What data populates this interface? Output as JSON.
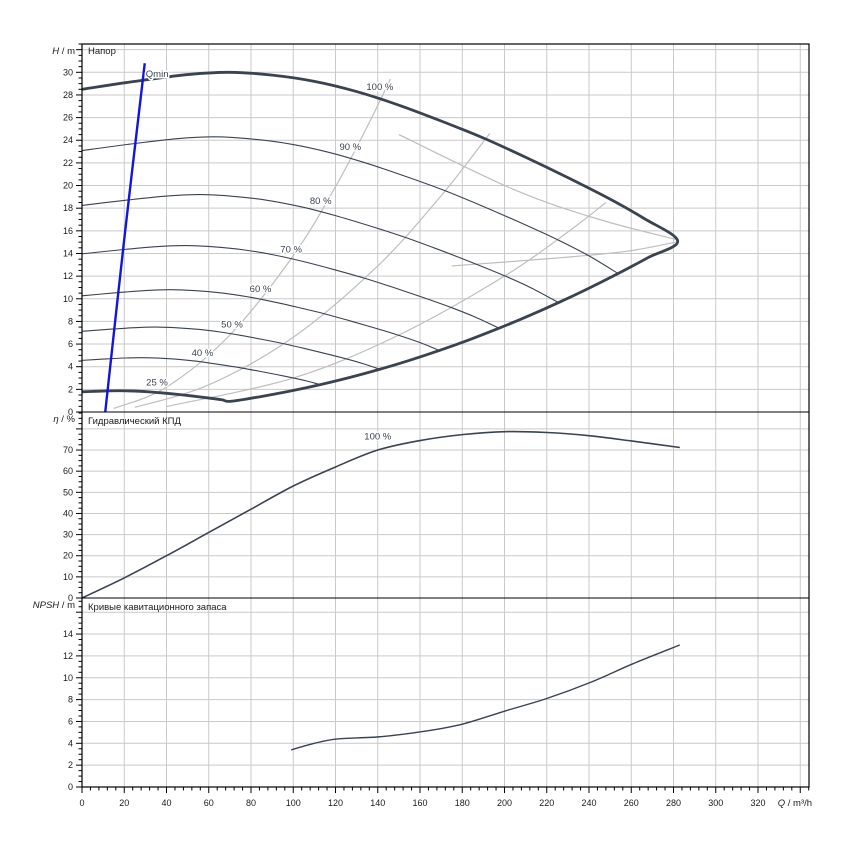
{
  "colors": {
    "curve": "#3A4350",
    "grid": "#C9C9C9",
    "iso": "#BEBEBE",
    "qmin": "#1414E0",
    "frame": "#000000",
    "text": "#1A1A1A",
    "tick": "#000000"
  },
  "x_axis": {
    "label_main": "Q",
    "label_unit": " / m³/h",
    "lim": [
      0,
      344
    ],
    "label_step": 20,
    "label_max": 320,
    "minor_step": 4
  },
  "chart_data": [
    {
      "id": "head",
      "type": "line",
      "title": "Напор",
      "ylabel_main": "H",
      "ylabel_unit": " / m",
      "ylim": [
        0,
        32.5
      ],
      "y_label_step": 2,
      "y_label_max": 30,
      "y_minor_step": 0.5,
      "grid_step": 2,
      "curve_100": [
        [
          0,
          28.5
        ],
        [
          25,
          29.2
        ],
        [
          50,
          29.8
        ],
        [
          70,
          30.0
        ],
        [
          90,
          29.75
        ],
        [
          110,
          29.2
        ],
        [
          130,
          28.3
        ],
        [
          150,
          27.1
        ],
        [
          170,
          25.7
        ],
        [
          190,
          24.2
        ],
        [
          210,
          22.5
        ],
        [
          230,
          20.7
        ],
        [
          250,
          18.8
        ],
        [
          266,
          17.1
        ],
        [
          282,
          15.1
        ]
      ],
      "speeds_thin": [
        0.9,
        0.8,
        0.7,
        0.6,
        0.5,
        0.4
      ],
      "speed_min": 0.25,
      "tip": [
        282,
        15.1
      ],
      "qmin_line": [
        [
          11,
          0
        ],
        [
          20.2,
          15.6
        ],
        [
          29.7,
          30.8
        ]
      ],
      "iso_lines": [
        [
          [
            15,
            0.31
          ],
          [
            40,
            2.2
          ],
          [
            70,
            6.8
          ],
          [
            100,
            13.8
          ],
          [
            120,
            19.9
          ],
          [
            135,
            25.2
          ],
          [
            146,
            29.4
          ]
        ],
        [
          [
            25,
            0.41
          ],
          [
            60,
            2.4
          ],
          [
            100,
            6.6
          ],
          [
            140,
            12.9
          ],
          [
            170,
            19.1
          ],
          [
            193,
            24.6
          ]
        ],
        [
          [
            40,
            0.48
          ],
          [
            100,
            3.0
          ],
          [
            150,
            6.8
          ],
          [
            200,
            12.0
          ],
          [
            230,
            15.9
          ],
          [
            248,
            18.5
          ]
        ],
        [
          [
            150,
            24.5
          ],
          [
            205,
            19.6
          ],
          [
            245,
            17.0
          ],
          [
            282,
            15.2
          ]
        ],
        [
          [
            175,
            12.9
          ],
          [
            225,
            13.6
          ],
          [
            258,
            14.2
          ],
          [
            281,
            15.0
          ]
        ]
      ],
      "labels": [
        {
          "text": "100 %",
          "q": 141,
          "h": 28.45,
          "anchor": "middle"
        },
        {
          "text": "90 %",
          "q": 127,
          "h": 23.15,
          "anchor": "middle"
        },
        {
          "text": "80 %",
          "q": 113,
          "h": 18.35,
          "anchor": "middle"
        },
        {
          "text": "70 %",
          "q": 99,
          "h": 14.1,
          "anchor": "middle"
        },
        {
          "text": "60 %",
          "q": 84.5,
          "h": 10.6,
          "anchor": "middle"
        },
        {
          "text": "50 %",
          "q": 71,
          "h": 7.45,
          "anchor": "middle"
        },
        {
          "text": "40 %",
          "q": 57,
          "h": 4.95,
          "anchor": "middle"
        },
        {
          "text": "25 %",
          "q": 35.5,
          "h": 2.35,
          "anchor": "middle"
        },
        {
          "text": "Qmin",
          "q": 30.2,
          "h": 29.6,
          "anchor": "start"
        }
      ]
    },
    {
      "id": "eff",
      "type": "line",
      "title": "Гидравлический КПД",
      "ylabel_main": "η",
      "ylabel_unit": " / %",
      "ylim": [
        0,
        88
      ],
      "y_label_step": 10,
      "y_label_max": 70,
      "y_minor_step": 2.5,
      "grid_step": 10,
      "series": [
        {
          "name": "100 %",
          "points": [
            [
              0,
              0
            ],
            [
              20,
              9.5
            ],
            [
              40,
              20
            ],
            [
              60,
              31
            ],
            [
              80,
              42
            ],
            [
              100,
              53
            ],
            [
              120,
              62
            ],
            [
              140,
              70
            ],
            [
              160,
              74.5
            ],
            [
              180,
              77.3
            ],
            [
              200,
              78.7
            ],
            [
              220,
              78.3
            ],
            [
              240,
              76.8
            ],
            [
              260,
              74.3
            ],
            [
              283,
              71.2
            ]
          ]
        }
      ],
      "labels": [
        {
          "text": "100 %",
          "q": 140,
          "h": 75,
          "anchor": "middle"
        }
      ]
    },
    {
      "id": "npsh",
      "type": "line",
      "title": "Кривые кавитационного запаса",
      "ylabel_main": "NPSH",
      "ylabel_unit": " / m",
      "ylim": [
        0,
        17.3
      ],
      "y_label_step": 2,
      "y_label_max": 14,
      "y_minor_step": 0.5,
      "grid_step": 2,
      "series": [
        {
          "name": "NPSH",
          "points": [
            [
              99,
              3.4
            ],
            [
              110,
              4.0
            ],
            [
              121,
              4.4
            ],
            [
              141,
              4.6
            ],
            [
              162,
              5.1
            ],
            [
              180,
              5.75
            ],
            [
              201,
              7.0
            ],
            [
              220,
              8.1
            ],
            [
              241,
              9.6
            ],
            [
              261,
              11.3
            ],
            [
              283,
              13.0
            ]
          ]
        }
      ],
      "labels": []
    }
  ]
}
